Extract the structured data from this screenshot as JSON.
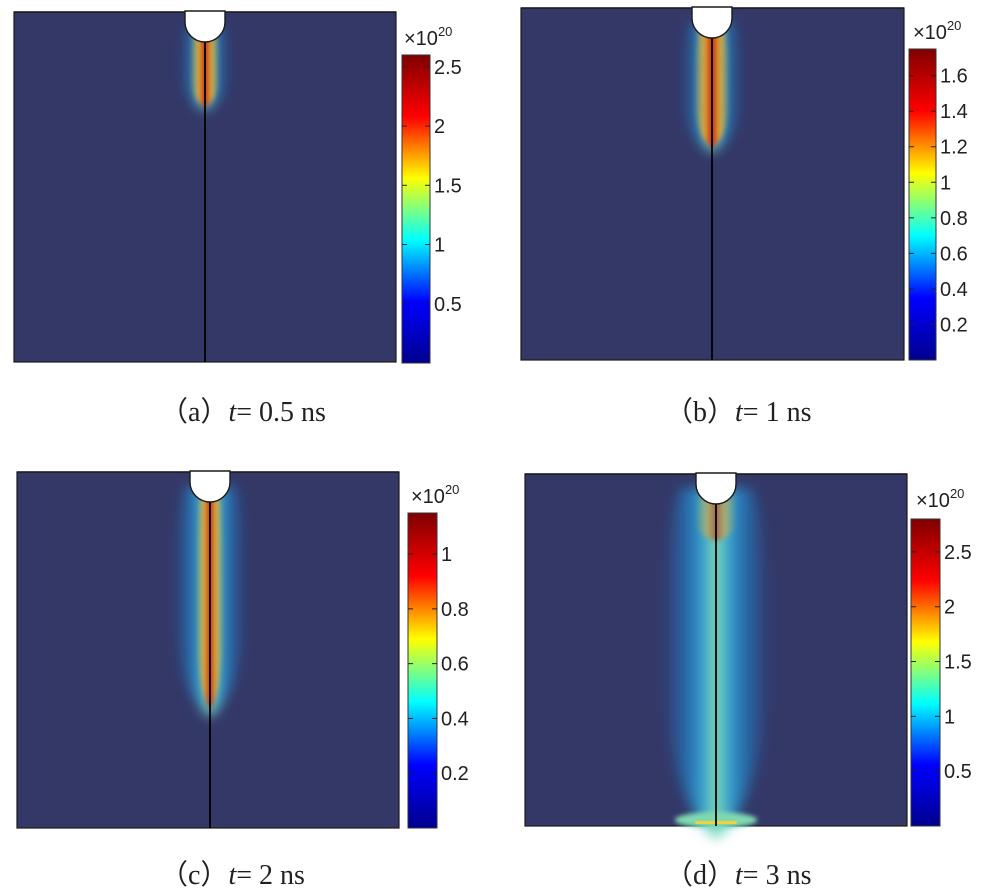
{
  "chart_data": [
    {
      "type": "heatmap",
      "panel": "(a)",
      "caption_prefix": "（a）",
      "time_label": "t",
      "time_value": "= 0.5 ns",
      "colorbar_multiplier": "×10",
      "colorbar_exponent": "20",
      "colorbar_range": [
        0,
        2.6
      ],
      "colorbar_ticks": [
        0.5,
        1,
        1.5,
        2,
        2.5
      ],
      "colorbar_tick_labels": [
        "0.5",
        "1",
        "1.5",
        "2",
        "2.5"
      ],
      "plume_length_fraction": 0.24,
      "plume_half_width_fraction": 0.08,
      "peak_value": 2.5
    },
    {
      "type": "heatmap",
      "panel": "(b)",
      "caption_prefix": "（b）",
      "time_label": "t",
      "time_value": "= 1 ns",
      "colorbar_multiplier": "×10",
      "colorbar_exponent": "20",
      "colorbar_range": [
        0,
        1.75
      ],
      "colorbar_ticks": [
        0.2,
        0.4,
        0.6,
        0.8,
        1,
        1.2,
        1.4,
        1.6
      ],
      "colorbar_tick_labels": [
        "0.2",
        "0.4",
        "0.6",
        "0.8",
        "1",
        "1.2",
        "1.4",
        "1.6"
      ],
      "plume_length_fraction": 0.37,
      "plume_half_width_fraction": 0.1,
      "peak_value": 1.7
    },
    {
      "type": "heatmap",
      "panel": "(c)",
      "caption_prefix": "（c）",
      "time_label": "t",
      "time_value": "= 2 ns",
      "colorbar_multiplier": "×10",
      "colorbar_exponent": "20",
      "colorbar_range": [
        0,
        1.15
      ],
      "colorbar_ticks": [
        0.2,
        0.4,
        0.6,
        0.8,
        1
      ],
      "colorbar_tick_labels": [
        "0.2",
        "0.4",
        "0.6",
        "0.8",
        "1"
      ],
      "plume_length_fraction": 0.65,
      "plume_half_width_fraction": 0.12,
      "peak_value": 1.1
    },
    {
      "type": "heatmap",
      "panel": "(d)",
      "caption_prefix": "（d）",
      "time_label": "t",
      "time_value": "= 3 ns",
      "colorbar_multiplier": "×10",
      "colorbar_exponent": "20",
      "colorbar_range": [
        0,
        2.8
      ],
      "colorbar_ticks": [
        0.5,
        1,
        1.5,
        2,
        2.5
      ],
      "colorbar_tick_labels": [
        "0.5",
        "1",
        "1.5",
        "2",
        "2.5"
      ],
      "plume_length_fraction": 1.0,
      "plume_half_width_fraction": 0.18,
      "peak_value": 2.5
    }
  ],
  "colors": {
    "background": "#343867",
    "needle_line": "#000000",
    "electrode": "#ffffff",
    "colormap": [
      "#00008f",
      "#0000ff",
      "#00ffff",
      "#ffff00",
      "#ff0000",
      "#800000"
    ]
  }
}
